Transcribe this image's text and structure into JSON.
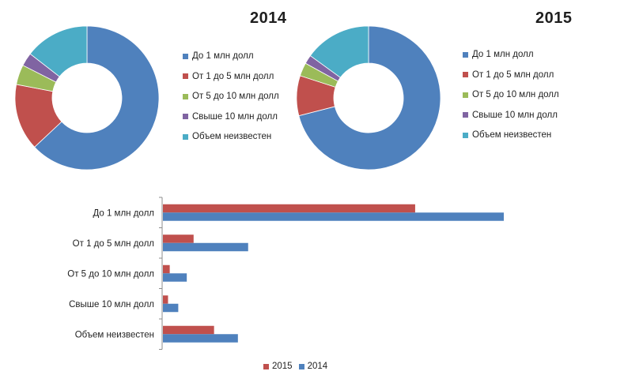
{
  "chart_data": [
    {
      "type": "pie",
      "variant": "donut",
      "title": "2014",
      "categories": [
        "До 1 млн долл",
        "От 1 до 5 млн долл",
        "От 5 до 10 млн долл",
        "Свыше 10 млн долл",
        "Объем неизвестен"
      ],
      "values": [
        63,
        15,
        4.5,
        3,
        14.5
      ],
      "colors": [
        "#4f81bd",
        "#c0504d",
        "#9bbb59",
        "#8064a2",
        "#4bacc6"
      ],
      "legend_position": "right"
    },
    {
      "type": "pie",
      "variant": "donut",
      "title": "2015",
      "categories": [
        "До 1 млн долл",
        "От 1 до 5 млн долл",
        "От 5 до 10 млн долл",
        "Свыше 10 млн долл",
        "Объем неизвестен"
      ],
      "values": [
        71,
        9,
        3,
        2,
        15
      ],
      "colors": [
        "#4f81bd",
        "#c0504d",
        "#9bbb59",
        "#8064a2",
        "#4bacc6"
      ],
      "legend_position": "right"
    },
    {
      "type": "bar",
      "orientation": "horizontal",
      "categories": [
        "До 1 млн долл",
        "От 1 до 5 млн долл",
        "От 5 до 10 млн долл",
        "Свыше 10 млн долл",
        "Объем неизвестен"
      ],
      "series": [
        {
          "name": "2015",
          "values": [
            74,
            9,
            2,
            1.5,
            15
          ],
          "color": "#c0504d"
        },
        {
          "name": "2014",
          "values": [
            100,
            25,
            7,
            4.5,
            22
          ],
          "color": "#4f81bd"
        }
      ],
      "xlim": [
        0,
        100
      ],
      "grid": false,
      "legend_position": "bottom",
      "legend_order": [
        "2015",
        "2014"
      ]
    }
  ]
}
